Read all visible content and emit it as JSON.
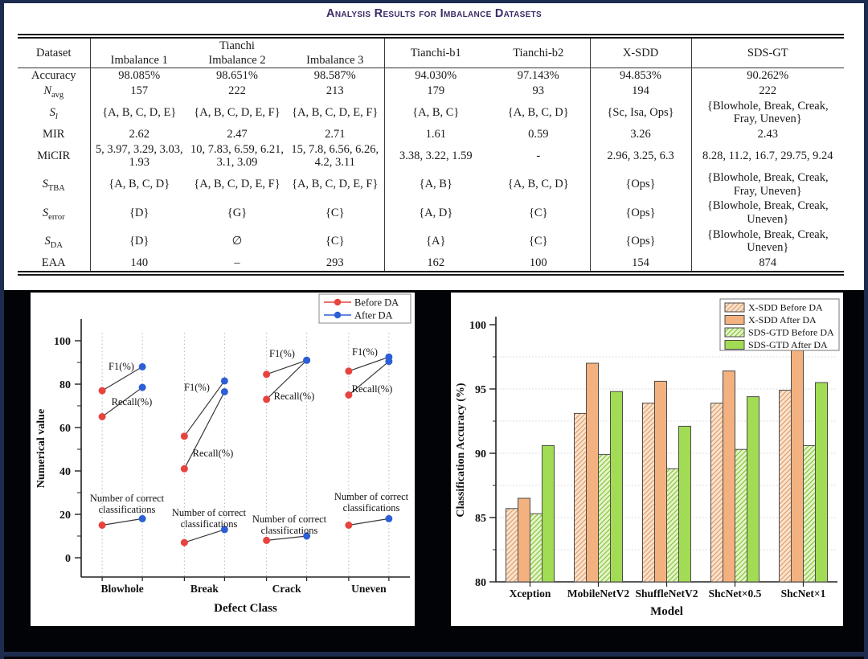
{
  "table": {
    "title": "Analysis Results for Imbalance Datasets",
    "header": {
      "dataset": "Dataset",
      "tianchi_group": "Tianchi",
      "subcols": [
        "Imbalance 1",
        "Imbalance 2",
        "Imbalance 3"
      ],
      "other_cols": [
        "Tianchi-b1",
        "Tianchi-b2",
        "X-SDD",
        "SDS-GT"
      ]
    },
    "rows": [
      {
        "label": "Accuracy",
        "cells": [
          "98.085%",
          "98.651%",
          "98.587%",
          "94.030%",
          "97.143%",
          "94.853%",
          "90.262%"
        ]
      },
      {
        "label": "N",
        "sub": "avg",
        "italic": true,
        "cells": [
          "157",
          "222",
          "213",
          "179",
          "93",
          "194",
          "222"
        ]
      },
      {
        "label": "S",
        "sub": "l",
        "italic": true,
        "sub_italic": true,
        "cells": [
          "{A, B, C, D, E}",
          "{A, B, C, D, E, F}",
          "{A, B, C, D, E, F}",
          "{A, B, C}",
          "{A, B, C, D}",
          "{Sc, Isa, Ops}",
          "{Blowhole, Break, Creak, Fray, Uneven}"
        ]
      },
      {
        "label": "MIR",
        "cells": [
          "2.62",
          "2.47",
          "2.71",
          "1.61",
          "0.59",
          "3.26",
          "2.43"
        ]
      },
      {
        "label": "MiCIR",
        "cells": [
          "5, 3.97, 3.29, 3.03, 1.93",
          "10, 7.83, 6.59, 6.21, 3.1, 3.09",
          "15, 7.8, 6.56, 6.26, 4.2, 3.11",
          "3.38, 3.22, 1.59",
          "-",
          "2.96, 3.25, 6.3",
          "8.28, 11.2, 16.7, 29.75, 9.24"
        ]
      },
      {
        "label": "S",
        "sub": "TBA",
        "italic": true,
        "cells": [
          "{A, B, C, D}",
          "{A, B, C, D, E, F}",
          "{A, B, C, D, E, F}",
          "{A, B}",
          "{A, B, C, D}",
          "{Ops}",
          "{Blowhole, Break, Creak, Fray, Uneven}"
        ]
      },
      {
        "label": "S",
        "sub": "error",
        "italic": true,
        "cells": [
          "{D}",
          "{G}",
          "{C}",
          "{A, D}",
          "{C}",
          "{Ops}",
          "{Blowhole, Break, Creak, Uneven}"
        ]
      },
      {
        "label": "S",
        "sub": "DA",
        "italic": true,
        "cells": [
          "{D}",
          "∅",
          "{C}",
          "{A}",
          "{C}",
          "{Ops}",
          "{Blowhole, Break, Creak, Uneven}"
        ]
      },
      {
        "label": "EAA",
        "cells": [
          "140",
          "–",
          "293",
          "162",
          "100",
          "154",
          "874"
        ]
      }
    ]
  },
  "chart_data": [
    {
      "type": "line",
      "title": "",
      "xlabel": "Defect Class",
      "ylabel": "Numerical value",
      "ylim": [
        0,
        100
      ],
      "yticks": [
        0,
        20,
        40,
        60,
        80,
        100
      ],
      "grid": "vertical dotted at each point column",
      "categories": [
        "Blowhole",
        "Break",
        "Crack",
        "Uneven"
      ],
      "legend": [
        {
          "label": "Before DA",
          "color": "#e8433e"
        },
        {
          "label": "After DA",
          "color": "#2c5fd6"
        }
      ],
      "legend_pos": "top-right",
      "connector_color": "#3a3a3a",
      "metrics": [
        {
          "name": "F1(%)",
          "before": [
            77,
            56,
            84.5,
            86
          ],
          "after": [
            88,
            81.5,
            91,
            92.5
          ],
          "label_lines": [
            "F1(%)"
          ],
          "label_pos": [
            [
              113,
              96
            ],
            [
              207,
              122
            ],
            [
              313,
              80
            ],
            [
              416,
              78
            ]
          ]
        },
        {
          "name": "Recall(%)",
          "before": [
            65,
            41,
            73,
            75
          ],
          "after": [
            78.5,
            76.5,
            91,
            90.5
          ],
          "label_lines": [
            "Recall(%)"
          ],
          "label_pos": [
            [
              126,
              140
            ],
            [
              227,
              204
            ],
            [
              328,
              133
            ],
            [
              425,
              124
            ]
          ]
        },
        {
          "name": "Number of correct classifications",
          "before": [
            15,
            7,
            8,
            15
          ],
          "after": [
            18,
            13,
            10,
            18
          ],
          "label_lines": [
            "Number of correct",
            "classifications"
          ],
          "label_pos": [
            [
              120,
              260
            ],
            [
              222,
              278
            ],
            [
              322,
              286
            ],
            [
              424,
              258
            ]
          ]
        }
      ]
    },
    {
      "type": "bar",
      "title": "",
      "xlabel": "Model",
      "ylabel": "Classification Accuracy (%)",
      "ylim": [
        80,
        100
      ],
      "yticks": [
        80,
        85,
        90,
        95,
        100
      ],
      "grid": "horizontal dotted every 2.5",
      "categories": [
        "Xception",
        "MobileNetV2",
        "ShuffleNetV2",
        "ShcNet×0.5",
        "ShcNet×1"
      ],
      "legend_pos": "top-right",
      "series": [
        {
          "name": "X-SDD Before DA",
          "values": [
            85.7,
            93.1,
            93.9,
            93.9,
            94.9
          ],
          "hatch": true,
          "fill": "#fae3cd",
          "hatch_color": "#df9f6e"
        },
        {
          "name": "X-SDD After DA",
          "values": [
            86.5,
            97.0,
            95.6,
            96.4,
            98.1
          ],
          "hatch": false,
          "fill": "#f2b17f"
        },
        {
          "name": "SDS-GTD Before DA",
          "values": [
            85.3,
            89.9,
            88.8,
            90.3,
            90.6
          ],
          "hatch": true,
          "fill": "#e6f4c8",
          "hatch_color": "#85c73e"
        },
        {
          "name": "SDS-GTD After DA",
          "values": [
            90.6,
            94.8,
            92.1,
            94.4,
            95.5
          ],
          "hatch": false,
          "fill": "#a2dc54"
        }
      ]
    }
  ]
}
